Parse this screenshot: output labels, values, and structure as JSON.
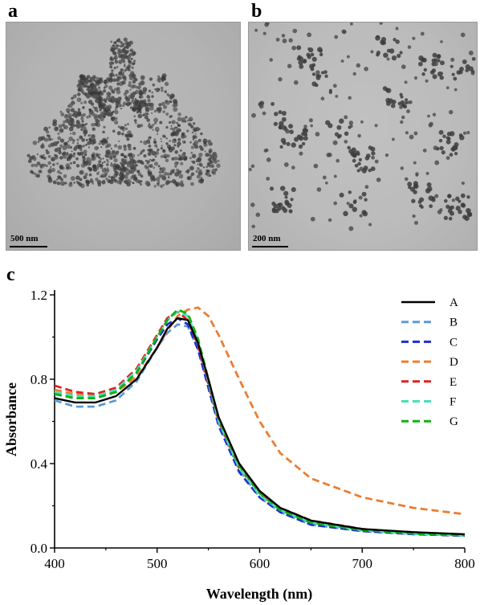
{
  "panels": {
    "a": {
      "letter": "a",
      "scale_bar": "500 nm"
    },
    "b": {
      "letter": "b",
      "scale_bar": "200 nm"
    },
    "c": {
      "letter": "c"
    }
  },
  "chart_data": {
    "type": "line",
    "title": "",
    "xlabel": "Wavelength (nm)",
    "ylabel": "Absorbance",
    "xlim": [
      400,
      800
    ],
    "ylim": [
      0.0,
      1.2
    ],
    "x_ticks": [
      400,
      500,
      600,
      700,
      800
    ],
    "y_ticks": [
      0.0,
      0.4,
      0.8,
      1.2
    ],
    "y_tick_labels": [
      "0.0",
      "0.4",
      "0.8",
      "1.2"
    ],
    "grid": false,
    "legend_position": "top-right",
    "x": [
      400,
      420,
      440,
      460,
      480,
      500,
      510,
      520,
      530,
      540,
      550,
      560,
      580,
      600,
      620,
      650,
      700,
      750,
      800
    ],
    "series": [
      {
        "name": "A",
        "color": "#000000",
        "style": "solid",
        "values": [
          0.71,
          0.69,
          0.69,
          0.72,
          0.8,
          0.95,
          1.04,
          1.09,
          1.08,
          0.97,
          0.8,
          0.62,
          0.4,
          0.27,
          0.19,
          0.13,
          0.09,
          0.075,
          0.065
        ]
      },
      {
        "name": "B",
        "color": "#5b9bd5",
        "style": "dashed",
        "values": [
          0.7,
          0.67,
          0.67,
          0.7,
          0.79,
          0.95,
          1.02,
          1.06,
          1.05,
          0.94,
          0.77,
          0.59,
          0.37,
          0.24,
          0.17,
          0.11,
          0.08,
          0.066,
          0.058
        ]
      },
      {
        "name": "C",
        "color": "#1f2fd0",
        "style": "dashed",
        "values": [
          0.73,
          0.71,
          0.71,
          0.74,
          0.83,
          0.99,
          1.06,
          1.09,
          1.06,
          0.94,
          0.76,
          0.58,
          0.36,
          0.24,
          0.17,
          0.11,
          0.08,
          0.065,
          0.058
        ]
      },
      {
        "name": "D",
        "color": "#ed7d31",
        "style": "dashed",
        "values": [
          0.75,
          0.73,
          0.72,
          0.74,
          0.81,
          0.95,
          1.03,
          1.1,
          1.13,
          1.14,
          1.1,
          1.01,
          0.8,
          0.6,
          0.45,
          0.33,
          0.24,
          0.19,
          0.16
        ]
      },
      {
        "name": "E",
        "color": "#e02020",
        "style": "dashed",
        "values": [
          0.77,
          0.74,
          0.73,
          0.76,
          0.85,
          1.01,
          1.09,
          1.12,
          1.08,
          0.96,
          0.78,
          0.6,
          0.38,
          0.26,
          0.19,
          0.13,
          0.09,
          0.072,
          0.062
        ]
      },
      {
        "name": "F",
        "color": "#48e0b8",
        "style": "dashed",
        "values": [
          0.74,
          0.72,
          0.72,
          0.75,
          0.84,
          1.0,
          1.08,
          1.12,
          1.1,
          0.98,
          0.79,
          0.6,
          0.38,
          0.25,
          0.18,
          0.12,
          0.085,
          0.068,
          0.06
        ]
      },
      {
        "name": "G",
        "color": "#12b012",
        "style": "dashed",
        "values": [
          0.73,
          0.71,
          0.71,
          0.74,
          0.83,
          1.0,
          1.08,
          1.13,
          1.11,
          0.99,
          0.8,
          0.61,
          0.39,
          0.26,
          0.18,
          0.12,
          0.085,
          0.068,
          0.06
        ]
      }
    ]
  }
}
